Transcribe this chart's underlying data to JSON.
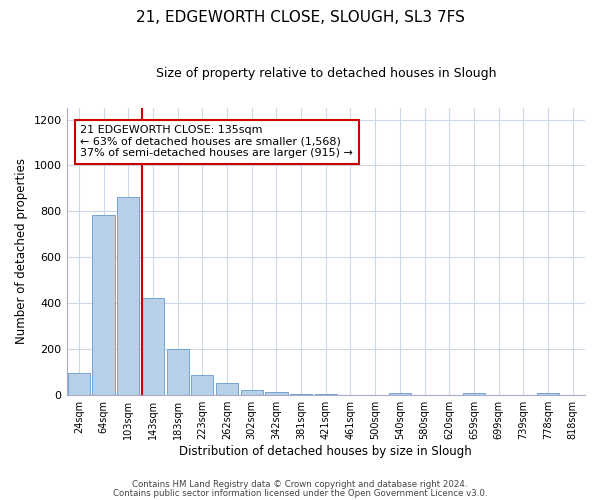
{
  "title": "21, EDGEWORTH CLOSE, SLOUGH, SL3 7FS",
  "subtitle": "Size of property relative to detached houses in Slough",
  "xlabel": "Distribution of detached houses by size in Slough",
  "ylabel": "Number of detached properties",
  "footnote1": "Contains HM Land Registry data © Crown copyright and database right 2024.",
  "footnote2": "Contains public sector information licensed under the Open Government Licence v3.0.",
  "bar_labels": [
    "24sqm",
    "64sqm",
    "103sqm",
    "143sqm",
    "183sqm",
    "223sqm",
    "262sqm",
    "302sqm",
    "342sqm",
    "381sqm",
    "421sqm",
    "461sqm",
    "500sqm",
    "540sqm",
    "580sqm",
    "620sqm",
    "659sqm",
    "699sqm",
    "739sqm",
    "778sqm",
    "818sqm"
  ],
  "bar_values": [
    95,
    785,
    860,
    420,
    200,
    85,
    52,
    22,
    10,
    5,
    2,
    0,
    0,
    8,
    0,
    0,
    8,
    0,
    0,
    8,
    0
  ],
  "bar_color": "#b8d0e8",
  "bar_edgecolor": "#6699cc",
  "line_color": "#cc0000",
  "property_label": "21 EDGEWORTH CLOSE: 135sqm",
  "annotation_line1": "← 63% of detached houses are smaller (1,568)",
  "annotation_line2": "37% of semi-detached houses are larger (915) →",
  "annotation_box_edgecolor": "#cc0000",
  "red_line_bar_index": 3,
  "ylim": [
    0,
    1250
  ],
  "yticks": [
    0,
    200,
    400,
    600,
    800,
    1000,
    1200
  ],
  "background_color": "#ffffff",
  "grid_color": "#ccd9e8",
  "title_fontsize": 11,
  "subtitle_fontsize": 9
}
